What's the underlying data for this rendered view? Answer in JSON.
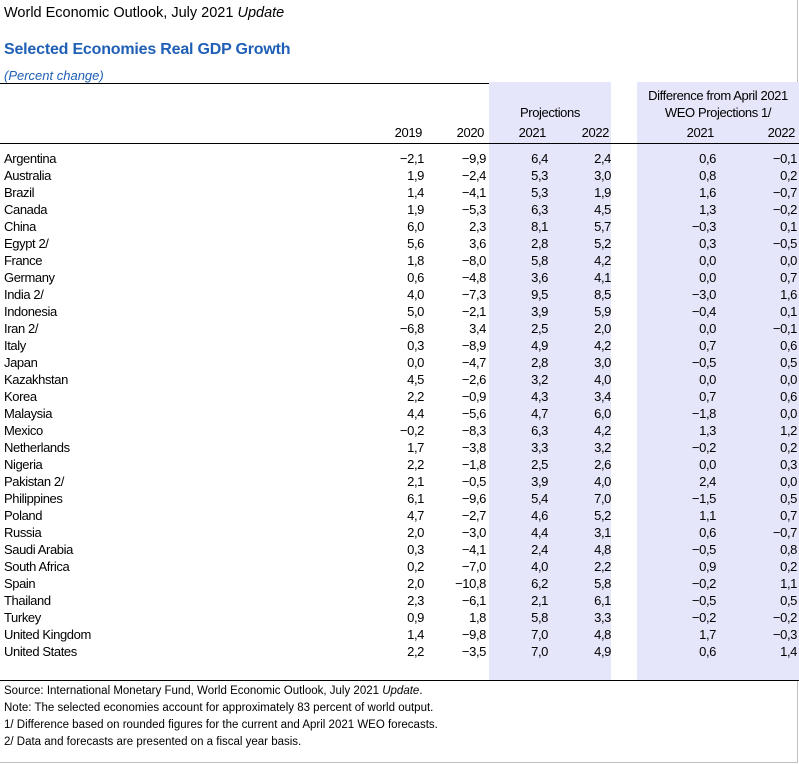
{
  "header": {
    "publication": "World Economic Outlook, July 2021",
    "publication_suffix": "Update",
    "title": "Selected Economies Real GDP Growth",
    "subtitle": "(Percent change)"
  },
  "columns": {
    "projections_label": "Projections",
    "difference_label_1": "Difference from April 2021",
    "difference_label_2": "WEO Projections 1/",
    "years": [
      "2019",
      "2020",
      "2021",
      "2022",
      "2021",
      "2022"
    ]
  },
  "rows": [
    {
      "name": "Argentina",
      "v": [
        "−2,1",
        "−9,9",
        "6,4",
        "2,4",
        "0,6",
        "−0,1"
      ]
    },
    {
      "name": "Australia",
      "v": [
        "1,9",
        "−2,4",
        "5,3",
        "3,0",
        "0,8",
        "0,2"
      ]
    },
    {
      "name": "Brazil",
      "v": [
        "1,4",
        "−4,1",
        "5,3",
        "1,9",
        "1,6",
        "−0,7"
      ]
    },
    {
      "name": "Canada",
      "v": [
        "1,9",
        "−5,3",
        "6,3",
        "4,5",
        "1,3",
        "−0,2"
      ]
    },
    {
      "name": "China",
      "v": [
        "6,0",
        "2,3",
        "8,1",
        "5,7",
        "−0,3",
        "0,1"
      ]
    },
    {
      "name": "Egypt 2/",
      "v": [
        "5,6",
        "3,6",
        "2,8",
        "5,2",
        "0,3",
        "−0,5"
      ]
    },
    {
      "name": "France",
      "v": [
        "1,8",
        "−8,0",
        "5,8",
        "4,2",
        "0,0",
        "0,0"
      ]
    },
    {
      "name": "Germany",
      "v": [
        "0,6",
        "−4,8",
        "3,6",
        "4,1",
        "0,0",
        "0,7"
      ]
    },
    {
      "name": "India 2/",
      "v": [
        "4,0",
        "−7,3",
        "9,5",
        "8,5",
        "−3,0",
        "1,6"
      ]
    },
    {
      "name": "Indonesia",
      "v": [
        "5,0",
        "−2,1",
        "3,9",
        "5,9",
        "−0,4",
        "0,1"
      ]
    },
    {
      "name": "Iran 2/",
      "v": [
        "−6,8",
        "3,4",
        "2,5",
        "2,0",
        "0,0",
        "−0,1"
      ]
    },
    {
      "name": "Italy",
      "v": [
        "0,3",
        "−8,9",
        "4,9",
        "4,2",
        "0,7",
        "0,6"
      ]
    },
    {
      "name": "Japan",
      "v": [
        "0,0",
        "−4,7",
        "2,8",
        "3,0",
        "−0,5",
        "0,5"
      ]
    },
    {
      "name": "Kazakhstan",
      "v": [
        "4,5",
        "−2,6",
        "3,2",
        "4,0",
        "0,0",
        "0,0"
      ]
    },
    {
      "name": "Korea",
      "v": [
        "2,2",
        "−0,9",
        "4,3",
        "3,4",
        "0,7",
        "0,6"
      ]
    },
    {
      "name": "Malaysia",
      "v": [
        "4,4",
        "−5,6",
        "4,7",
        "6,0",
        "−1,8",
        "0,0"
      ]
    },
    {
      "name": "Mexico",
      "v": [
        "−0,2",
        "−8,3",
        "6,3",
        "4,2",
        "1,3",
        "1,2"
      ]
    },
    {
      "name": "Netherlands",
      "v": [
        "1,7",
        "−3,8",
        "3,3",
        "3,2",
        "−0,2",
        "0,2"
      ]
    },
    {
      "name": "Nigeria",
      "v": [
        "2,2",
        "−1,8",
        "2,5",
        "2,6",
        "0,0",
        "0,3"
      ]
    },
    {
      "name": "Pakistan 2/",
      "v": [
        "2,1",
        "−0,5",
        "3,9",
        "4,0",
        "2,4",
        "0,0"
      ]
    },
    {
      "name": "Philippines",
      "v": [
        "6,1",
        "−9,6",
        "5,4",
        "7,0",
        "−1,5",
        "0,5"
      ]
    },
    {
      "name": "Poland",
      "v": [
        "4,7",
        "−2,7",
        "4,6",
        "5,2",
        "1,1",
        "0,7"
      ]
    },
    {
      "name": "Russia",
      "v": [
        "2,0",
        "−3,0",
        "4,4",
        "3,1",
        "0,6",
        "−0,7"
      ]
    },
    {
      "name": "Saudi Arabia",
      "v": [
        "0,3",
        "−4,1",
        "2,4",
        "4,8",
        "−0,5",
        "0,8"
      ]
    },
    {
      "name": "South Africa",
      "v": [
        "0,2",
        "−7,0",
        "4,0",
        "2,2",
        "0,9",
        "0,2"
      ]
    },
    {
      "name": "Spain",
      "v": [
        "2,0",
        "−10,8",
        "6,2",
        "5,8",
        "−0,2",
        "1,1"
      ]
    },
    {
      "name": "Thailand",
      "v": [
        "2,3",
        "−6,1",
        "2,1",
        "6,1",
        "−0,5",
        "0,5"
      ]
    },
    {
      "name": "Turkey",
      "v": [
        "0,9",
        "1,8",
        "5,8",
        "3,3",
        "−0,2",
        "−0,2"
      ]
    },
    {
      "name": "United Kingdom",
      "v": [
        "1,4",
        "−9,8",
        "7,0",
        "4,8",
        "1,7",
        "−0,3"
      ]
    },
    {
      "name": "United States",
      "v": [
        "2,2",
        "−3,5",
        "7,0",
        "4,9",
        "0,6",
        "1,4"
      ]
    }
  ],
  "notes": {
    "source_prefix": "Source: International Monetary Fund, World Economic Outlook, July 2021",
    "source_suffix": "Update",
    "note": "Note: The selected economies account for approximately 83 percent of world output.",
    "footnote1": "1/ Difference based on rounded figures for the current and April 2021 WEO forecasts.",
    "footnote2": "2/ Data and forecasts are presented on a fiscal year basis."
  }
}
